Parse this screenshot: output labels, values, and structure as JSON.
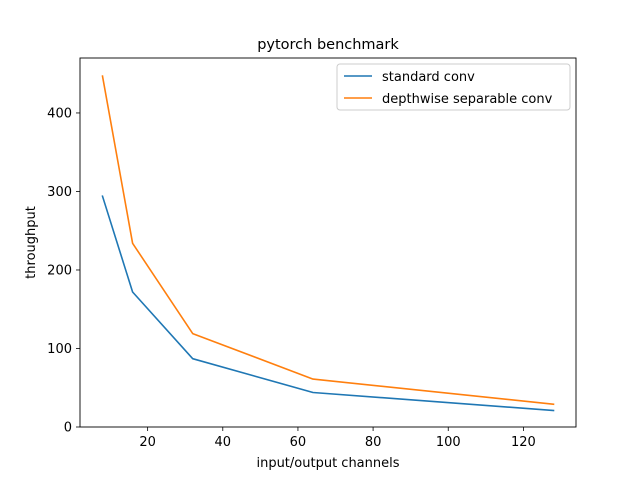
{
  "chart_data": {
    "type": "line",
    "title": "pytorch benchmark",
    "xlabel": "input/output channels",
    "ylabel": "throughput",
    "xlim": [
      2,
      134
    ],
    "ylim": [
      0,
      470
    ],
    "xticks": [
      20,
      40,
      60,
      80,
      100,
      120
    ],
    "yticks": [
      0,
      100,
      200,
      300,
      400
    ],
    "grid": false,
    "legend_position": "top-right",
    "x": [
      8,
      16,
      32,
      64,
      128
    ],
    "series": [
      {
        "name": "standard conv",
        "color": "#1f77b4",
        "values": [
          294,
          172,
          87,
          44,
          21
        ]
      },
      {
        "name": "depthwise separable conv",
        "color": "#ff7f0e",
        "values": [
          447,
          234,
          119,
          61,
          29
        ]
      }
    ]
  }
}
